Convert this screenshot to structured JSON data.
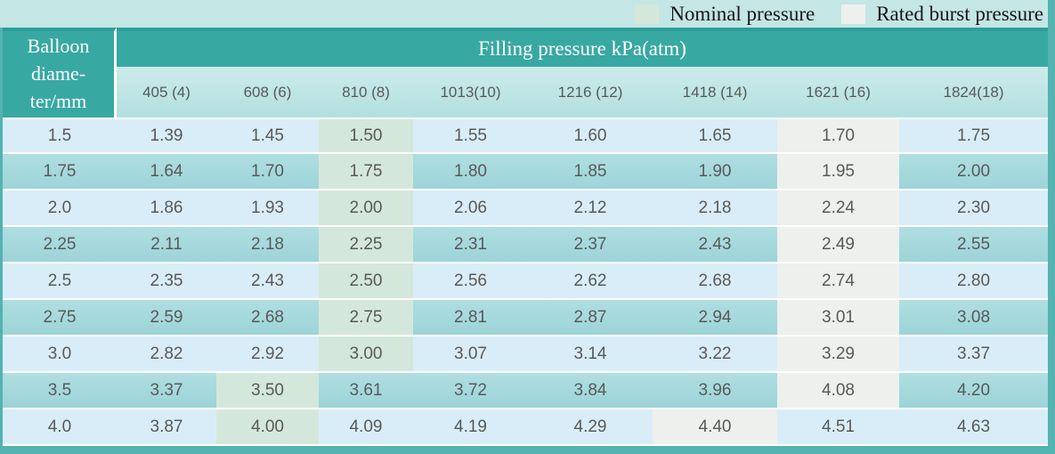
{
  "legend": {
    "nominal_label": "Nominal pressure",
    "burst_label": "Rated burst pressure"
  },
  "colors": {
    "frame_teal": "#52b3b0",
    "header_teal": "#38a8a3",
    "header_top_line": "#2e9e9a",
    "legend_bg": "#c4e6e5",
    "subheader_top": "#cdebeb",
    "subheader_bottom": "#b3dfe0",
    "row_light": "#d9edf8",
    "row_teal": "#a6d9dc",
    "nominal_highlight": "#d3e8db",
    "burst_highlight": "#edf0ed",
    "data_text": "#595959",
    "header_text": "#ffffff"
  },
  "chart_data": {
    "type": "table",
    "title": "Filling pressure kPa(atm)",
    "row_header_label": "Balloon\ndiame-\nter/mm",
    "columns": [
      "405 (4)",
      "608 (6)",
      "810 (8)",
      "1013(10)",
      "1216 (12)",
      "1418 (14)",
      "1621 (16)",
      "1824(18)"
    ],
    "legend": {
      "nominal": "Nominal pressure",
      "burst": "Rated burst pressure"
    },
    "rows": [
      {
        "diameter": "1.5",
        "values": [
          "1.39",
          "1.45",
          "1.50",
          "1.55",
          "1.60",
          "1.65",
          "1.70",
          "1.75"
        ],
        "nominal_col": 2,
        "burst_col": 6
      },
      {
        "diameter": "1.75",
        "values": [
          "1.64",
          "1.70",
          "1.75",
          "1.80",
          "1.85",
          "1.90",
          "1.95",
          "2.00"
        ],
        "nominal_col": 2,
        "burst_col": 6
      },
      {
        "diameter": "2.0",
        "values": [
          "1.86",
          "1.93",
          "2.00",
          "2.06",
          "2.12",
          "2.18",
          "2.24",
          "2.30"
        ],
        "nominal_col": 2,
        "burst_col": 6
      },
      {
        "diameter": "2.25",
        "values": [
          "2.11",
          "2.18",
          "2.25",
          "2.31",
          "2.37",
          "2.43",
          "2.49",
          "2.55"
        ],
        "nominal_col": 2,
        "burst_col": 6
      },
      {
        "diameter": "2.5",
        "values": [
          "2.35",
          "2.43",
          "2.50",
          "2.56",
          "2.62",
          "2.68",
          "2.74",
          "2.80"
        ],
        "nominal_col": 2,
        "burst_col": 6
      },
      {
        "diameter": "2.75",
        "values": [
          "2.59",
          "2.68",
          "2.75",
          "2.81",
          "2.87",
          "2.94",
          "3.01",
          "3.08"
        ],
        "nominal_col": 2,
        "burst_col": 6
      },
      {
        "diameter": "3.0",
        "values": [
          "2.82",
          "2.92",
          "3.00",
          "3.07",
          "3.14",
          "3.22",
          "3.29",
          "3.37"
        ],
        "nominal_col": 2,
        "burst_col": 6
      },
      {
        "diameter": "3.5",
        "values": [
          "3.37",
          "3.50",
          "3.61",
          "3.72",
          "3.84",
          "3.96",
          "4.08",
          "4.20"
        ],
        "nominal_col": 1,
        "burst_col": 6
      },
      {
        "diameter": "4.0",
        "values": [
          "3.87",
          "4.00",
          "4.09",
          "4.19",
          "4.29",
          "4.40",
          "4.51",
          "4.63"
        ],
        "nominal_col": 1,
        "burst_col": 5
      }
    ]
  }
}
